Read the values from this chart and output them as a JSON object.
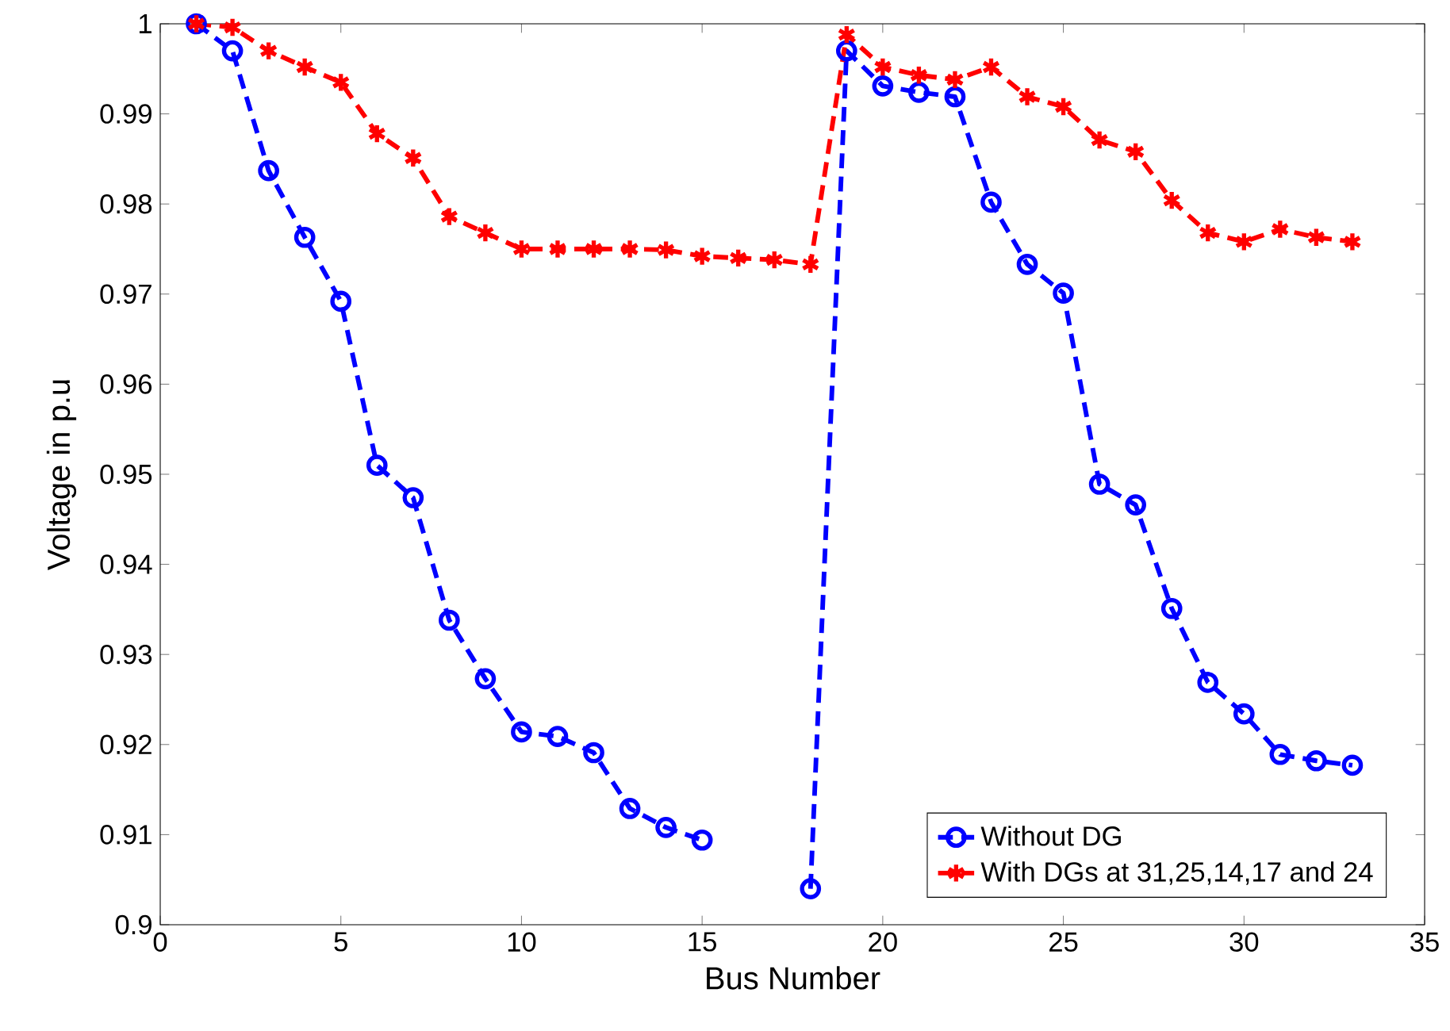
{
  "chart_data": {
    "type": "line",
    "xlabel": "Bus Number",
    "ylabel": "Voltage in p.u",
    "x": [
      1,
      2,
      3,
      4,
      5,
      6,
      7,
      8,
      9,
      10,
      11,
      12,
      13,
      14,
      15,
      16,
      17,
      18,
      19,
      20,
      21,
      22,
      23,
      24,
      25,
      26,
      27,
      28,
      29,
      30,
      31,
      32,
      33
    ],
    "series": [
      {
        "name": "Without DG",
        "color": "#0000ff",
        "marker": "circle",
        "values": [
          1.0,
          0.997,
          0.9837,
          0.9763,
          0.9692,
          0.951,
          0.9474,
          0.9338,
          0.9273,
          0.9214,
          0.9209,
          0.9191,
          0.9129,
          0.9108,
          0.9094,
          null,
          null,
          0.904,
          0.997,
          0.9931,
          0.9924,
          0.9919,
          0.9802,
          0.9733,
          0.9701,
          0.9489,
          0.9466,
          0.9351,
          0.9269,
          0.9234,
          0.9189,
          0.9182,
          0.9177
        ]
      },
      {
        "name": "With DGs at 31,25,14,17 and 24",
        "color": "#ff0000",
        "marker": "cross",
        "values": [
          1.0,
          0.9996,
          0.997,
          0.9952,
          0.9935,
          0.9878,
          0.9851,
          0.9786,
          0.9768,
          0.975,
          0.975,
          0.975,
          0.975,
          0.9749,
          0.9742,
          0.974,
          0.9738,
          0.9733,
          0.9988,
          0.9952,
          0.9943,
          0.9938,
          0.9952,
          0.9919,
          0.9908,
          0.9871,
          0.9858,
          0.9804,
          0.9768,
          0.9758,
          0.9772,
          0.9763,
          0.9758
        ]
      }
    ],
    "xlim": [
      0,
      35
    ],
    "xticks": [
      0,
      5,
      10,
      15,
      20,
      25,
      30,
      35
    ],
    "ylim": [
      0.9,
      1
    ],
    "yticks": [
      0.9,
      0.91,
      0.92,
      0.93,
      0.94,
      0.95,
      0.96,
      0.97,
      0.98,
      0.99,
      1
    ],
    "line_style": "dashed",
    "legend": "bottom right",
    "grid": false
  }
}
